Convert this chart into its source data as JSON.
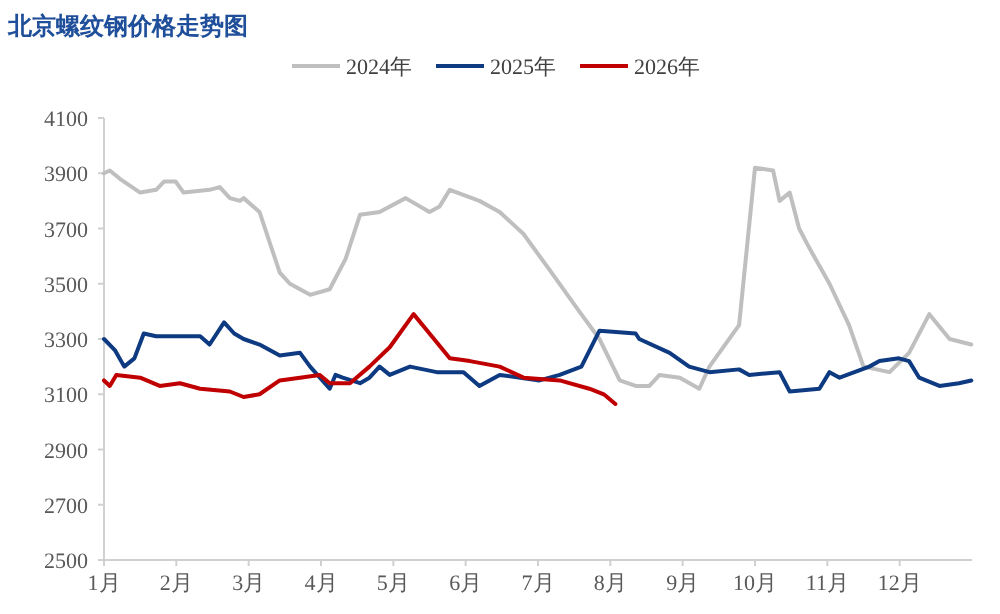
{
  "chart_data": {
    "type": "line",
    "title": "北京螺纹钢价格走势图",
    "legend": "top",
    "xlim": [
      1,
      13
    ],
    "xticks": [
      {
        "value": 1,
        "label": "1月"
      },
      {
        "value": 2,
        "label": "2月"
      },
      {
        "value": 3,
        "label": "3月"
      },
      {
        "value": 4,
        "label": "4月"
      },
      {
        "value": 5,
        "label": "5月"
      },
      {
        "value": 6,
        "label": "6月"
      },
      {
        "value": 7,
        "label": "7月"
      },
      {
        "value": 8,
        "label": "8月"
      },
      {
        "value": 9,
        "label": "9月"
      },
      {
        "value": 10,
        "label": "10月"
      },
      {
        "value": 11,
        "label": "11月"
      },
      {
        "value": 12,
        "label": "12月"
      }
    ],
    "ylim": [
      2500,
      4100
    ],
    "yticks": [
      2500,
      2700,
      2900,
      3100,
      3300,
      3500,
      3700,
      3900,
      4100
    ],
    "series": [
      {
        "name": "2024年",
        "color": "#bfbfbf",
        "x": [
          1.0,
          1.08,
          1.22,
          1.5,
          1.72,
          1.83,
          1.99,
          2.1,
          2.46,
          2.6,
          2.74,
          2.88,
          2.93,
          3.15,
          3.29,
          3.43,
          3.57,
          3.85,
          4.12,
          4.34,
          4.54,
          4.81,
          5.17,
          5.5,
          5.64,
          5.78,
          6.19,
          6.47,
          6.8,
          7.16,
          7.57,
          7.85,
          8.13,
          8.35,
          8.54,
          8.68,
          8.96,
          9.23,
          9.37,
          9.78,
          10.0,
          10.25,
          10.34,
          10.48,
          10.61,
          10.75,
          11.03,
          11.3,
          11.5,
          11.86,
          12.13,
          12.41,
          12.69,
          12.99
        ],
        "values": [
          3900,
          3910,
          3880,
          3830,
          3840,
          3870,
          3870,
          3830,
          3840,
          3850,
          3810,
          3800,
          3810,
          3760,
          3650,
          3540,
          3500,
          3460,
          3480,
          3590,
          3750,
          3760,
          3810,
          3760,
          3780,
          3840,
          3800,
          3760,
          3680,
          3550,
          3400,
          3300,
          3150,
          3130,
          3130,
          3170,
          3160,
          3120,
          3200,
          3350,
          3920,
          3910,
          3800,
          3830,
          3700,
          3630,
          3500,
          3350,
          3200,
          3180,
          3250,
          3390,
          3300,
          3280
        ]
      },
      {
        "name": "2025年",
        "color": "#0d3a80",
        "x": [
          1.0,
          1.15,
          1.28,
          1.42,
          1.55,
          1.72,
          2.0,
          2.33,
          2.46,
          2.66,
          2.8,
          2.93,
          3.15,
          3.43,
          3.71,
          3.85,
          4.12,
          4.2,
          4.3,
          4.54,
          4.67,
          4.81,
          4.95,
          5.23,
          5.6,
          5.97,
          6.19,
          6.47,
          7.02,
          7.3,
          7.6,
          7.85,
          8.35,
          8.4,
          8.82,
          9.09,
          9.37,
          9.78,
          9.92,
          10.34,
          10.48,
          10.89,
          11.03,
          11.17,
          11.58,
          11.72,
          11.99,
          12.13,
          12.27,
          12.55,
          12.82,
          12.99
        ],
        "values": [
          3300,
          3260,
          3200,
          3230,
          3320,
          3310,
          3310,
          3310,
          3280,
          3360,
          3320,
          3300,
          3280,
          3240,
          3250,
          3200,
          3120,
          3170,
          3160,
          3140,
          3160,
          3200,
          3170,
          3200,
          3180,
          3180,
          3130,
          3170,
          3150,
          3170,
          3200,
          3330,
          3320,
          3300,
          3250,
          3200,
          3180,
          3190,
          3170,
          3180,
          3110,
          3120,
          3180,
          3160,
          3200,
          3220,
          3230,
          3220,
          3160,
          3130,
          3140,
          3150
        ]
      },
      {
        "name": "2026年",
        "color": "#c00000",
        "x": [
          1.0,
          1.08,
          1.17,
          1.5,
          1.77,
          2.05,
          2.33,
          2.74,
          2.93,
          3.15,
          3.43,
          3.71,
          3.98,
          4.12,
          4.4,
          4.67,
          4.95,
          5.28,
          5.5,
          5.78,
          6.06,
          6.47,
          6.8,
          7.3,
          7.71,
          7.91,
          8.07
        ],
        "values": [
          3150,
          3130,
          3170,
          3160,
          3130,
          3140,
          3120,
          3110,
          3090,
          3100,
          3150,
          3160,
          3170,
          3140,
          3140,
          3200,
          3270,
          3390,
          3320,
          3230,
          3220,
          3200,
          3160,
          3150,
          3120,
          3100,
          3065
        ]
      }
    ]
  }
}
